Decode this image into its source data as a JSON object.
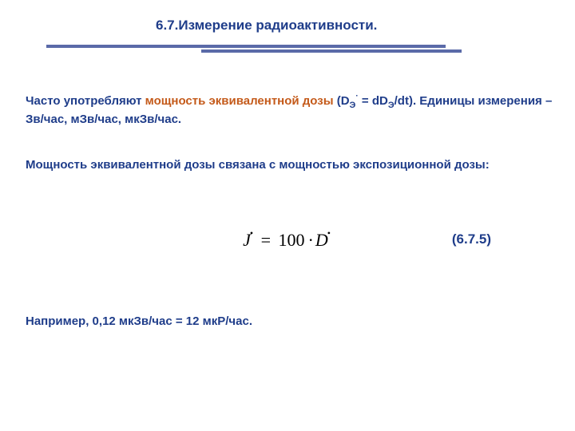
{
  "colors": {
    "title": "#1f3d8a",
    "rule": "#5a6aa8",
    "body_text": "#1f3d8a",
    "term_highlight": "#c45a1a",
    "eq_num": "#1f3d8a",
    "formula": "#000000"
  },
  "title": "6.7.Измерение радиоактивности.",
  "para1": {
    "pre": "Часто употребляют ",
    "term": "мощность эквивалентной дозы",
    "post_a": " (D",
    "post_sub": "Э",
    "post_dot": "·",
    "post_b": " = dD",
    "post_sub2": "Э",
    "post_c": "/dt). Единицы измерения – Зв/час, мЗв/час, мкЗв/час."
  },
  "para2": "Мощность эквивалентной дозы связана с мощностью экспозиционной дозы:",
  "equation": {
    "lhs": "J",
    "lhs_dot": "•",
    "eq": "=",
    "coeff": "100",
    "mul": "·",
    "rhs": "D",
    "rhs_dot": "•"
  },
  "eq_number": "(6.7.5)",
  "para3": "Например, 0,12 мкЗв/час = 12 мкР/час."
}
